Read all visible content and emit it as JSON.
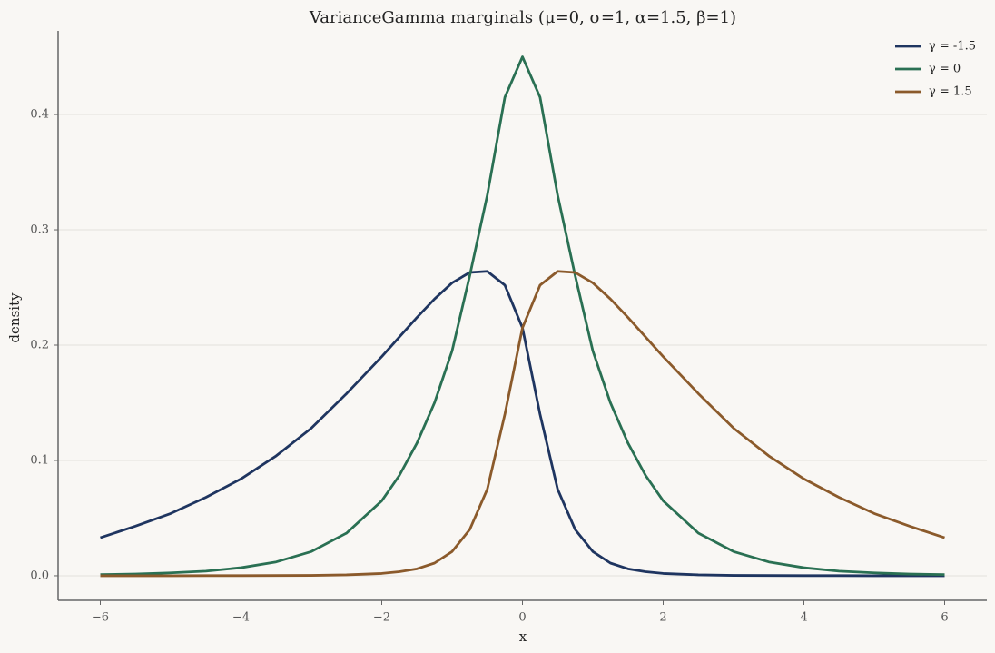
{
  "chart_data": {
    "type": "line",
    "title": "VarianceGamma marginals (μ=0, σ=1, α=1.5, β=1)",
    "x_label": "x",
    "y_label": "density",
    "x": [
      -6,
      -5.5,
      -5,
      -4.5,
      -4,
      -3.5,
      -3,
      -2.5,
      -2,
      -1.75,
      -1.5,
      -1.25,
      -1,
      -0.75,
      -0.5,
      -0.25,
      0,
      0.25,
      0.5,
      0.75,
      1,
      1.25,
      1.5,
      1.75,
      2,
      2.5,
      3,
      3.5,
      4,
      4.5,
      5,
      5.5,
      6
    ],
    "series": [
      {
        "name": "γ = -1.5",
        "color": "#1f3560",
        "values": [
          0.033,
          0.043,
          0.054,
          0.068,
          0.084,
          0.104,
          0.128,
          0.158,
          0.19,
          0.207,
          0.224,
          0.24,
          0.254,
          0.263,
          0.264,
          0.252,
          0.215,
          0.14,
          0.075,
          0.04,
          0.021,
          0.011,
          0.006,
          0.0035,
          0.002,
          0.0008,
          0.0003,
          0.0002,
          0.0001,
          0.0001,
          0,
          0,
          0
        ]
      },
      {
        "name": "γ = 0",
        "color": "#2a7053",
        "values": [
          0.001,
          0.0015,
          0.0025,
          0.004,
          0.007,
          0.012,
          0.021,
          0.037,
          0.065,
          0.087,
          0.115,
          0.15,
          0.195,
          0.26,
          0.33,
          0.415,
          0.45,
          0.415,
          0.33,
          0.26,
          0.195,
          0.15,
          0.115,
          0.087,
          0.065,
          0.037,
          0.021,
          0.012,
          0.007,
          0.004,
          0.0025,
          0.0015,
          0.001
        ]
      },
      {
        "name": "γ = 1.5",
        "color": "#8b5a2b",
        "values": [
          0,
          0,
          0,
          0.0001,
          0.0001,
          0.0002,
          0.0003,
          0.0008,
          0.002,
          0.0035,
          0.006,
          0.011,
          0.021,
          0.04,
          0.075,
          0.14,
          0.215,
          0.252,
          0.264,
          0.263,
          0.254,
          0.24,
          0.224,
          0.207,
          0.19,
          0.158,
          0.128,
          0.104,
          0.084,
          0.068,
          0.054,
          0.043,
          0.033
        ]
      }
    ],
    "xlim": [
      -6.6,
      6.6
    ],
    "ylim": [
      -0.0213,
      0.4725
    ],
    "xticks": [
      {
        "value": -6,
        "label": "−6"
      },
      {
        "value": -4,
        "label": "−4"
      },
      {
        "value": -2,
        "label": "−2"
      },
      0,
      2,
      4,
      6
    ],
    "yticks": [
      {
        "value": 0,
        "label": "0.0"
      },
      0.1,
      0.2,
      0.3,
      0.4
    ],
    "grid": true,
    "legend": "upper-right"
  }
}
